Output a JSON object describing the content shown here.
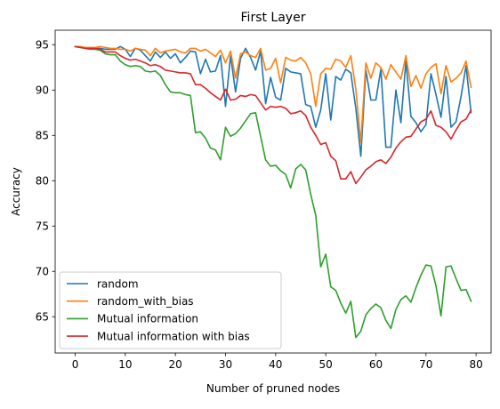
{
  "chart_data": {
    "type": "line",
    "title": "First Layer",
    "xlabel": "Number of pruned nodes",
    "ylabel": "Accuracy",
    "xlim": [
      -4,
      83
    ],
    "ylim": [
      61.0,
      96.6
    ],
    "xticks": [
      0,
      10,
      20,
      30,
      40,
      50,
      60,
      70,
      80
    ],
    "yticks": [
      65,
      70,
      75,
      80,
      85,
      90,
      95
    ],
    "legend_position": "lower-left",
    "grid": false,
    "x": [
      0,
      1,
      2,
      3,
      4,
      5,
      6,
      7,
      8,
      9,
      10,
      11,
      12,
      13,
      14,
      15,
      16,
      17,
      18,
      19,
      20,
      21,
      22,
      23,
      24,
      25,
      26,
      27,
      28,
      29,
      30,
      31,
      32,
      33,
      34,
      35,
      36,
      37,
      38,
      39,
      40,
      41,
      42,
      43,
      44,
      45,
      46,
      47,
      48,
      49,
      50,
      51,
      52,
      53,
      54,
      55,
      56,
      57,
      58,
      59,
      60,
      61,
      62,
      63,
      64,
      65,
      66,
      67,
      68,
      69,
      70,
      71,
      72,
      73,
      74,
      75,
      76,
      77,
      78,
      79
    ],
    "series": [
      {
        "name": "random",
        "color": "#1f77b4",
        "values": [
          94.8,
          94.7,
          94.7,
          94.6,
          94.6,
          94.6,
          94.5,
          94.5,
          94.5,
          94.8,
          94.5,
          93.7,
          94.6,
          94.4,
          93.8,
          93.2,
          94.2,
          93.6,
          94.2,
          93.5,
          94.0,
          93.0,
          93.6,
          94.3,
          94.2,
          91.8,
          93.4,
          92.0,
          92.1,
          93.8,
          88.2,
          93.8,
          89.8,
          93.5,
          94.6,
          93.6,
          92.2,
          94.3,
          88.5,
          91.4,
          89.2,
          88.9,
          92.4,
          92.0,
          91.9,
          91.8,
          88.4,
          88.2,
          85.9,
          87.8,
          91.8,
          86.7,
          91.5,
          91.1,
          92.3,
          91.9,
          88.0,
          82.7,
          92.2,
          88.9,
          88.9,
          92.3,
          83.7,
          83.7,
          90.0,
          86.4,
          93.2,
          87.1,
          86.4,
          85.4,
          86.2,
          91.8,
          89.5,
          87.0,
          91.5,
          85.9,
          86.5,
          89.3,
          92.7,
          87.5
        ]
      },
      {
        "name": "random_with_bias",
        "color": "#ff7f0e",
        "values": [
          94.8,
          94.8,
          94.7,
          94.7,
          94.7,
          94.8,
          94.7,
          94.6,
          94.6,
          94.5,
          94.5,
          94.3,
          94.6,
          94.5,
          94.4,
          93.8,
          94.6,
          94.1,
          94.3,
          94.4,
          94.5,
          94.2,
          94.1,
          94.6,
          94.6,
          94.3,
          94.5,
          94.1,
          93.7,
          94.4,
          93.0,
          94.3,
          91.3,
          94.0,
          94.2,
          93.8,
          93.6,
          94.6,
          92.2,
          92.4,
          93.5,
          90.8,
          93.6,
          93.3,
          93.2,
          93.6,
          93.0,
          91.8,
          88.2,
          91.8,
          92.4,
          92.3,
          93.4,
          93.2,
          92.5,
          93.8,
          90.1,
          84.2,
          93.0,
          91.3,
          93.0,
          92.5,
          91.2,
          92.8,
          92.0,
          91.2,
          93.8,
          90.4,
          91.6,
          90.2,
          91.8,
          92.5,
          92.9,
          89.6,
          92.7,
          90.9,
          91.3,
          91.9,
          93.2,
          90.3
        ]
      },
      {
        "name": "Mutual information",
        "color": "#2ca02c",
        "values": [
          94.8,
          94.7,
          94.6,
          94.5,
          94.5,
          94.4,
          94.0,
          93.9,
          93.9,
          93.2,
          92.8,
          92.6,
          92.7,
          92.6,
          92.1,
          92.0,
          92.1,
          91.6,
          90.6,
          89.8,
          89.7,
          89.7,
          89.5,
          89.4,
          85.3,
          85.4,
          84.7,
          83.6,
          83.4,
          82.3,
          85.9,
          84.9,
          85.2,
          85.8,
          86.6,
          87.4,
          87.5,
          84.9,
          82.3,
          81.6,
          81.7,
          81.1,
          80.7,
          79.2,
          81.3,
          81.8,
          81.2,
          78.5,
          76.2,
          70.5,
          71.9,
          68.3,
          67.9,
          66.5,
          65.4,
          66.7,
          62.7,
          63.4,
          65.2,
          65.9,
          66.4,
          66.0,
          64.6,
          63.7,
          65.8,
          66.9,
          67.3,
          66.6,
          68.2,
          69.6,
          70.7,
          70.6,
          68.4,
          65.1,
          70.5,
          70.6,
          69.2,
          67.9,
          68.0,
          66.7
        ]
      },
      {
        "name": "Mutual information with bias",
        "color": "#d62728",
        "values": [
          94.8,
          94.7,
          94.6,
          94.6,
          94.6,
          94.5,
          94.2,
          94.2,
          94.2,
          93.8,
          93.5,
          93.3,
          93.4,
          93.2,
          93.0,
          92.7,
          92.8,
          92.6,
          92.2,
          92.1,
          92.0,
          91.9,
          91.9,
          91.8,
          90.6,
          90.6,
          90.2,
          89.7,
          89.3,
          88.9,
          90.1,
          88.9,
          89.0,
          89.4,
          89.3,
          89.5,
          89.4,
          88.6,
          87.8,
          88.2,
          88.1,
          88.2,
          88.0,
          87.4,
          87.5,
          87.7,
          87.2,
          85.9,
          85.0,
          84.0,
          84.2,
          82.7,
          82.2,
          80.2,
          80.2,
          81.0,
          79.7,
          80.4,
          81.2,
          81.6,
          82.1,
          82.3,
          81.9,
          82.6,
          83.6,
          84.3,
          84.8,
          84.9,
          85.7,
          86.5,
          86.8,
          87.7,
          86.1,
          85.9,
          85.4,
          84.6,
          85.6,
          86.5,
          86.8,
          87.8
        ]
      }
    ]
  }
}
